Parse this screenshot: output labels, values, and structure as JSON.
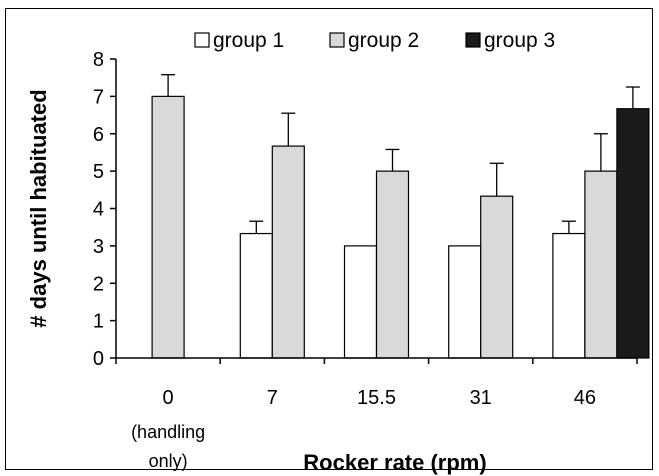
{
  "chart_data": {
    "type": "bar",
    "categories": [
      "0",
      "7",
      "15.5",
      "31",
      "46"
    ],
    "category_sublabels": [
      "(handling",
      "only)"
    ],
    "series": [
      {
        "name": "group 1",
        "color": "#ffffff",
        "values": [
          null,
          3.33,
          3.0,
          3.0,
          3.33
        ],
        "errors": [
          null,
          0.33,
          0,
          0,
          0.33
        ]
      },
      {
        "name": "group 2",
        "color": "#d9d9d9",
        "values": [
          7.0,
          5.67,
          5.0,
          4.33,
          5.0
        ],
        "errors": [
          0.58,
          0.88,
          0.58,
          0.88,
          1.0
        ]
      },
      {
        "name": "group 3",
        "color": "#1a1a1a",
        "values": [
          null,
          null,
          null,
          null,
          6.67
        ],
        "errors": [
          null,
          null,
          null,
          null,
          0.58
        ]
      }
    ],
    "xlabel": "Rocker rate (rpm)",
    "ylabel": "# days until habituated",
    "ylim": [
      0,
      8
    ],
    "yticks": [
      "0",
      "1",
      "2",
      "3",
      "4",
      "5",
      "6",
      "7",
      "8"
    ],
    "grid": false,
    "legend_position": "top"
  }
}
